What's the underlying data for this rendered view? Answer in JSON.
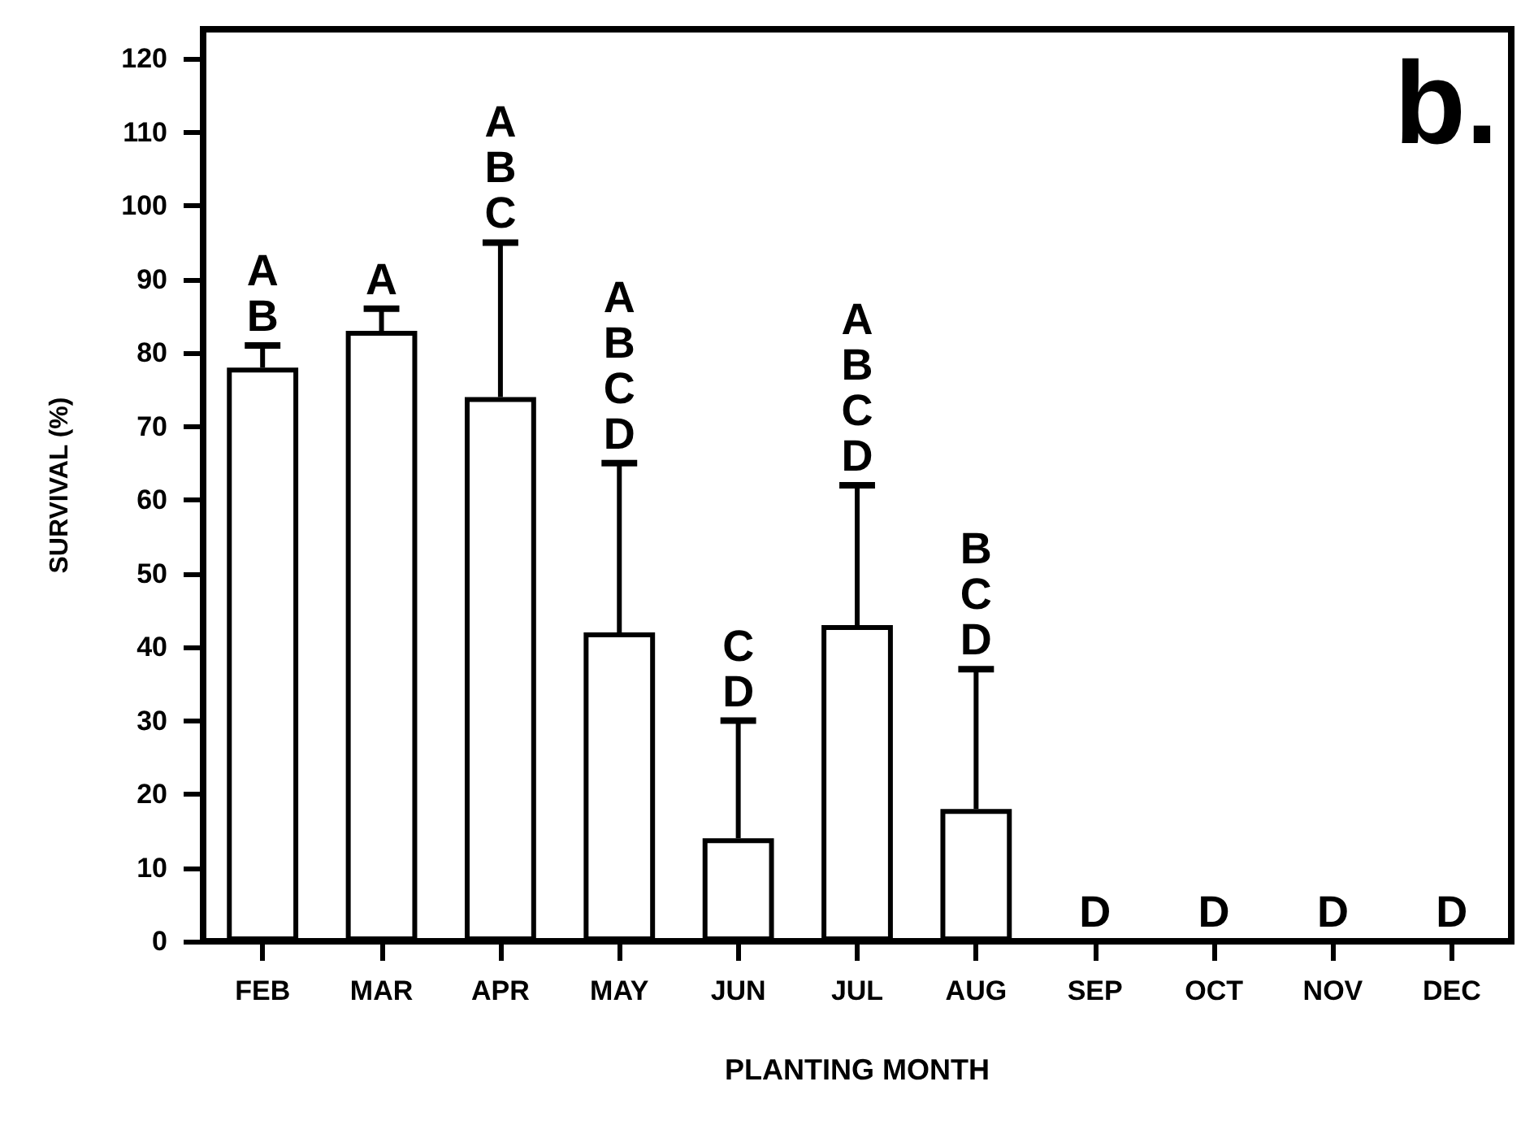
{
  "chart_data": {
    "type": "bar",
    "xlabel": "PLANTING MONTH",
    "ylabel": "SURVIVAL (%)",
    "categories": [
      "FEB",
      "MAR",
      "APR",
      "MAY",
      "JUN",
      "JUL",
      "AUG",
      "SEP",
      "OCT",
      "NOV",
      "DEC"
    ],
    "values": [
      78,
      83,
      74,
      42,
      14,
      43,
      18,
      0,
      0,
      0,
      0
    ],
    "errors": [
      [
        78,
        81
      ],
      [
        83,
        86
      ],
      [
        74,
        95
      ],
      [
        42,
        65
      ],
      [
        14,
        30
      ],
      [
        43,
        62
      ],
      [
        18,
        37
      ],
      null,
      null,
      null,
      null
    ],
    "color": "#ffffff",
    "ylim": [
      0,
      124
    ],
    "yticks": [
      0,
      10,
      20,
      30,
      40,
      50,
      60,
      70,
      80,
      90,
      100,
      110,
      120
    ],
    "grid": false,
    "annotations": [
      {
        "text": "A\nB",
        "x": "FEB",
        "y": 81
      },
      {
        "text": "A",
        "x": "MAR",
        "y": 86
      },
      {
        "text": "A\nB\nC",
        "x": "APR",
        "y": 95
      },
      {
        "text": "A\nB\nC\nD",
        "x": "MAY",
        "y": 65
      },
      {
        "text": "C\nD",
        "x": "JUN",
        "y": 30
      },
      {
        "text": "A\nB\nC\nD",
        "x": "JUL",
        "y": 62
      },
      {
        "text": "B\nC\nD",
        "x": "AUG",
        "y": 37
      },
      {
        "text": "D",
        "x": "SEP",
        "y": 0
      },
      {
        "text": "D",
        "x": "OCT",
        "y": 0
      },
      {
        "text": "D",
        "x": "NOV",
        "y": 0
      },
      {
        "text": "D",
        "x": "DEC",
        "y": 0
      },
      "b."
    ]
  }
}
